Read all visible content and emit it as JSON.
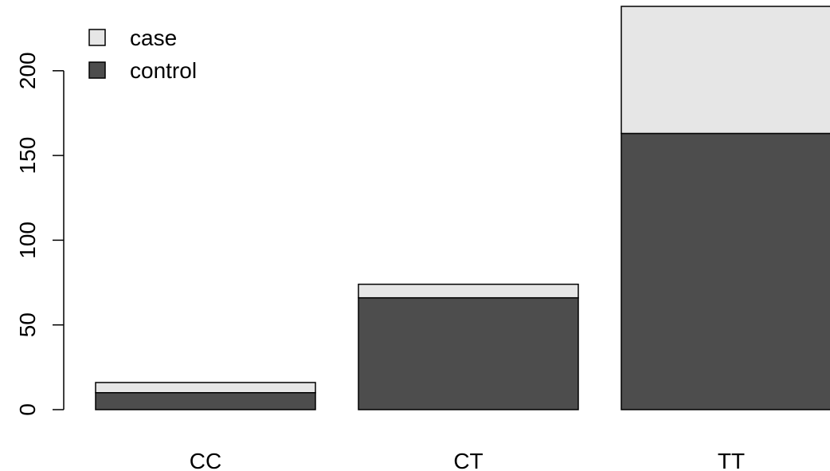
{
  "chart_data": {
    "type": "bar",
    "stacked": true,
    "categories": [
      "CC",
      "CT",
      "TT"
    ],
    "series": [
      {
        "name": "control",
        "values": [
          10,
          66,
          163
        ],
        "color": "#4d4d4d"
      },
      {
        "name": "case",
        "values": [
          6,
          8,
          75
        ],
        "color": "#e6e6e6"
      }
    ],
    "title": "",
    "xlabel": "",
    "ylabel": "",
    "ylim": [
      0,
      238
    ],
    "yticks": [
      0,
      50,
      100,
      150,
      200
    ],
    "ytick_labels": [
      "0",
      "50",
      "100",
      "150",
      "200"
    ],
    "grid": false,
    "legend": {
      "placement": "top-left",
      "entries": [
        {
          "label": "case",
          "color": "#e6e6e6"
        },
        {
          "label": "control",
          "color": "#4d4d4d"
        }
      ]
    }
  }
}
